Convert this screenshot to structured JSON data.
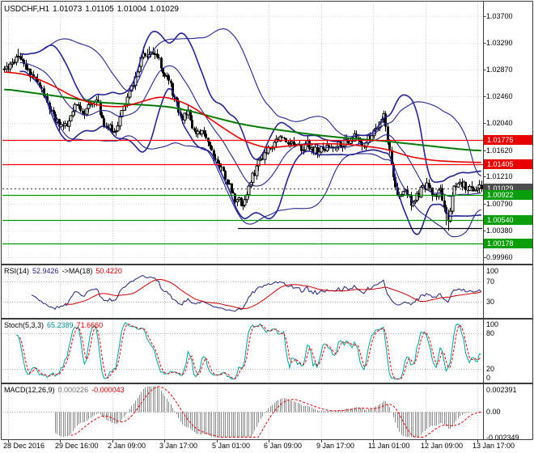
{
  "window": {
    "symbol": "USDCHF,H1",
    "ohlc": {
      "open": "1.01073",
      "high": "1.01105",
      "low": "1.01004",
      "close": "1.01029"
    }
  },
  "colors": {
    "background": "#ffffff",
    "border": "#3a3a3a",
    "grid": "#c6c6c6",
    "grid_h": "#dadada",
    "candle": "#000000",
    "candle_bull_fill": "#ffffff",
    "bollinger": "#24248f",
    "ma_fast": "#e60000",
    "ma_slow": "#067a06",
    "level_red": "#ff0000",
    "level_green": "#009a00",
    "tag_red": "#e60000",
    "tag_green": "#0a9e0a",
    "tag_current": "#4d4d4d",
    "indicator_level": "#ababab",
    "rsi_line": "#20207a",
    "rsi_ma": "#cc0000",
    "stoch_k": "#009f9f",
    "stoch_d": "#e60000",
    "macd_hist": "#8a8a8a",
    "macd_signal": "#e60000",
    "axis_text": "#000000"
  },
  "chart_data": {
    "type": "candlestick",
    "title": "USDCHF,H1 1.01073 1.01105 1.01004 1.01029",
    "symbol": "USDCHF",
    "timeframe": "H1",
    "grid": true,
    "legend_position": "none",
    "last_bar_ohlc": {
      "open": 1.01073,
      "high": 1.01105,
      "low": 1.01004,
      "close": 1.01029
    },
    "x_axis": {
      "labels": [
        "28 Dec 2016",
        "29 Dec 16:00",
        "2 Jan 09:00",
        "3 Jan 17:00",
        "5 Jan 01:00",
        "6 Jan 09:00",
        "9 Jan 17:00",
        "11 Jan 01:00",
        "12 Jan 09:00",
        "13 Jan 17:00"
      ]
    },
    "y_axis": {
      "price_top": 1.039,
      "price_bottom": 0.99885,
      "ticks": [
        {
          "label": "1.03700",
          "price": 1.037
        },
        {
          "label": "1.03290",
          "price": 1.0329
        },
        {
          "label": "1.02870",
          "price": 1.0287
        },
        {
          "label": "1.02460",
          "price": 1.0246
        },
        {
          "label": "1.02040",
          "price": 1.0204
        },
        {
          "label": "1.01620",
          "price": 1.0162
        },
        {
          "label": "1.01210",
          "price": 1.0121
        },
        {
          "label": "1.00790",
          "price": 1.0079
        },
        {
          "label": "1.00380",
          "price": 1.0038
        },
        {
          "label": "0.99960",
          "price": 0.9996
        }
      ]
    },
    "bars": {
      "count": 245,
      "seed": 11,
      "path": [
        [
          0.0,
          1.0288
        ],
        [
          0.012,
          1.0296
        ],
        [
          0.03,
          1.031
        ],
        [
          0.045,
          1.0286
        ],
        [
          0.06,
          1.0278
        ],
        [
          0.08,
          1.0252
        ],
        [
          0.105,
          1.0208
        ],
        [
          0.13,
          1.0196
        ],
        [
          0.15,
          1.0232
        ],
        [
          0.17,
          1.0221
        ],
        [
          0.19,
          1.0244
        ],
        [
          0.21,
          1.0202
        ],
        [
          0.23,
          1.019
        ],
        [
          0.26,
          1.0246
        ],
        [
          0.29,
          1.0306
        ],
        [
          0.31,
          1.0318
        ],
        [
          0.33,
          1.0291
        ],
        [
          0.35,
          1.0258
        ],
        [
          0.37,
          1.0209
        ],
        [
          0.385,
          1.0226
        ],
        [
          0.4,
          1.0184
        ],
        [
          0.42,
          1.0189
        ],
        [
          0.44,
          1.0152
        ],
        [
          0.46,
          1.0127
        ],
        [
          0.48,
          1.009
        ],
        [
          0.5,
          1.0078
        ],
        [
          0.515,
          1.011
        ],
        [
          0.535,
          1.0148
        ],
        [
          0.555,
          1.0168
        ],
        [
          0.575,
          1.0181
        ],
        [
          0.595,
          1.0177
        ],
        [
          0.615,
          1.0165
        ],
        [
          0.635,
          1.0171
        ],
        [
          0.655,
          1.0159
        ],
        [
          0.675,
          1.0165
        ],
        [
          0.695,
          1.0171
        ],
        [
          0.715,
          1.0176
        ],
        [
          0.735,
          1.0183
        ],
        [
          0.755,
          1.017
        ],
        [
          0.775,
          1.0193
        ],
        [
          0.795,
          1.0219
        ],
        [
          0.81,
          1.0146
        ],
        [
          0.825,
          1.0084
        ],
        [
          0.84,
          1.0102
        ],
        [
          0.855,
          1.0078
        ],
        [
          0.87,
          1.0096
        ],
        [
          0.885,
          1.0108
        ],
        [
          0.9,
          1.009
        ],
        [
          0.915,
          1.0102
        ],
        [
          0.925,
          1.0061
        ],
        [
          0.93,
          1.0047
        ],
        [
          0.94,
          1.01
        ],
        [
          0.96,
          1.0108
        ],
        [
          0.98,
          1.0101
        ],
        [
          1.0,
          1.0104
        ]
      ]
    },
    "overlays": {
      "bollinger": [
        {
          "period": 20,
          "deviation": 2
        },
        {
          "period": 45,
          "deviation": 2
        }
      ],
      "ma_fast": {
        "label": "moving-average-red",
        "path": [
          [
            0.0,
            1.0284
          ],
          [
            0.05,
            1.0279
          ],
          [
            0.1,
            1.0263
          ],
          [
            0.15,
            1.0243
          ],
          [
            0.2,
            1.0231
          ],
          [
            0.25,
            1.0229
          ],
          [
            0.3,
            1.024
          ],
          [
            0.33,
            1.0246
          ],
          [
            0.37,
            1.0238
          ],
          [
            0.4,
            1.0227
          ],
          [
            0.45,
            1.0201
          ],
          [
            0.5,
            1.0177
          ],
          [
            0.55,
            1.0165
          ],
          [
            0.6,
            1.0169
          ],
          [
            0.65,
            1.0172
          ],
          [
            0.7,
            1.0172
          ],
          [
            0.75,
            1.0169
          ],
          [
            0.8,
            1.0164
          ],
          [
            0.85,
            1.0152
          ],
          [
            0.9,
            1.0146
          ],
          [
            0.95,
            1.0144
          ],
          [
            1.0,
            1.0143
          ]
        ]
      },
      "ma_slow": {
        "label": "moving-average-green",
        "path": [
          [
            0.0,
            1.0257
          ],
          [
            0.1,
            1.0247
          ],
          [
            0.2,
            1.0236
          ],
          [
            0.3,
            1.0232
          ],
          [
            0.35,
            1.0229
          ],
          [
            0.4,
            1.0221
          ],
          [
            0.45,
            1.0211
          ],
          [
            0.5,
            1.0202
          ],
          [
            0.55,
            1.0196
          ],
          [
            0.6,
            1.0191
          ],
          [
            0.65,
            1.0186
          ],
          [
            0.7,
            1.0182
          ],
          [
            0.75,
            1.0179
          ],
          [
            0.8,
            1.0176
          ],
          [
            0.85,
            1.0172
          ],
          [
            0.9,
            1.0168
          ],
          [
            0.95,
            1.0164
          ],
          [
            1.0,
            1.0161
          ]
        ]
      }
    },
    "levels": [
      {
        "label": "1.01775",
        "price": 1.01775,
        "line_color": "#ff0000",
        "tag_color": "#e60000",
        "style": "solid",
        "role": "resistance-level-tag"
      },
      {
        "label": "1.01405",
        "price": 1.01405,
        "line_color": "#ff0000",
        "tag_color": "#e60000",
        "style": "solid",
        "role": "resistance-level-tag"
      },
      {
        "label": "1.01029",
        "price": 1.01029,
        "line_color": "#555555",
        "tag_color": "#4d4d4d",
        "style": "dotted",
        "role": "current-price-tag"
      },
      {
        "label": "1.00922",
        "price": 1.00922,
        "line_color": "#009a00",
        "tag_color": "#0a9e0a",
        "style": "solid",
        "role": "support-level-tag"
      },
      {
        "label": "1.00540",
        "price": 1.0054,
        "line_color": "#009a00",
        "tag_color": "#0a9e0a",
        "style": "solid",
        "role": "support-level-tag"
      },
      {
        "label": "1.00178",
        "price": 1.00178,
        "line_color": "#009a00",
        "tag_color": "#0a9e0a",
        "style": "solid",
        "role": "support-level-tag"
      }
    ],
    "segment": {
      "price": 1.00415,
      "from": 0.49,
      "to": 1.0,
      "color": "#000000"
    },
    "panels": {
      "rsi": {
        "name": "RSI(14)",
        "value": "52.9426",
        "ma_name": "->MA(18)",
        "ma_value": "50.4220",
        "range": [
          0,
          100
        ],
        "levels": [
          30,
          70
        ],
        "ticks": [
          {
            "label": "100",
            "value": 100
          },
          {
            "label": "70",
            "value": 70
          },
          {
            "label": "30",
            "value": 30
          }
        ]
      },
      "stoch": {
        "name": "Stoch(5,3,3)",
        "value": "65.2389",
        "value2": "71.6660",
        "range": [
          0,
          100
        ],
        "levels": [
          20,
          80
        ],
        "ticks": [
          {
            "label": "100",
            "value": 100
          },
          {
            "label": "80",
            "value": 80
          },
          {
            "label": "20",
            "value": 20
          },
          {
            "label": "0",
            "value": 0
          }
        ]
      },
      "macd": {
        "name": "MACD(12,26,9)",
        "value": "0.000226",
        "value2": "-0.000043",
        "range": [
          -0.002349,
          0.002391
        ],
        "ticks": [
          {
            "label": "0.002391",
            "value": 0.002391
          },
          {
            "label": "0.00",
            "value": 0
          },
          {
            "label": "-0.002349",
            "value": -0.002349
          }
        ]
      }
    }
  }
}
